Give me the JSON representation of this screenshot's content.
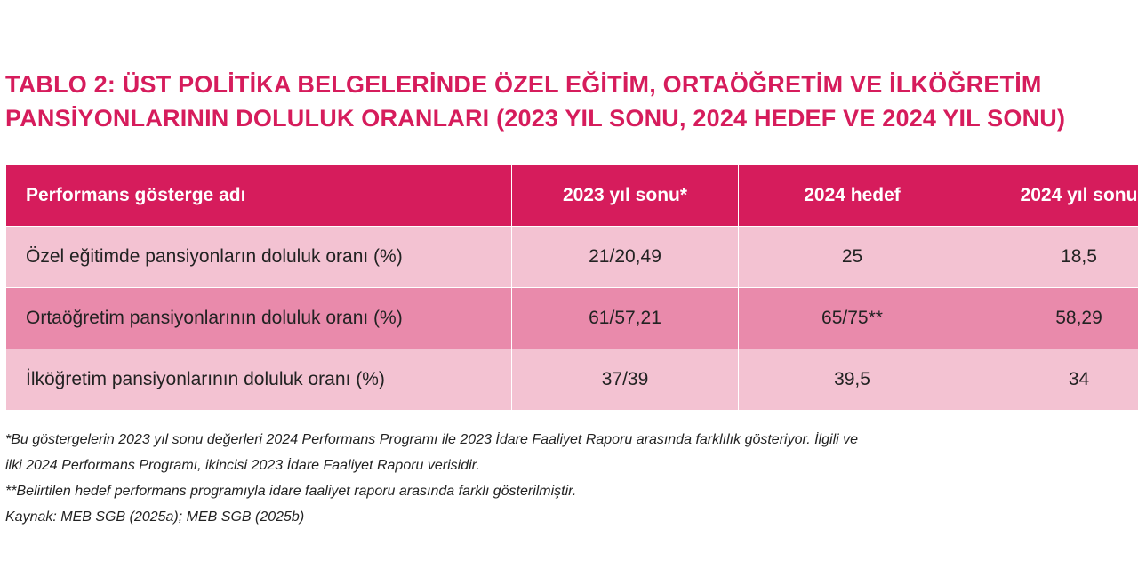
{
  "title": {
    "line1": "TABLO 2: ÜST POLİTİKA BELGELERİNDE ÖZEL EĞİTİM, ORTAÖĞRETİM VE İLKÖĞRETİM",
    "line2": "PANSİYONLARININ DOLULUK ORANLARI (2023 YIL SONU, 2024 HEDEF VE 2024 YIL SONU)"
  },
  "table": {
    "headers": [
      "Performans gösterge adı",
      "2023 yıl sonu*",
      "2024 hedef",
      "2024 yıl sonu"
    ],
    "rows": [
      [
        "Özel eğitimde pansiyonların doluluk oranı (%)",
        "21/20,49",
        "25",
        "18,5"
      ],
      [
        "Ortaöğretim pansiyonlarının doluluk oranı (%)",
        "61/57,21",
        "65/75**",
        "58,29"
      ],
      [
        "İlköğretim pansiyonlarının doluluk oranı (%)",
        "37/39",
        "39,5",
        "34"
      ]
    ]
  },
  "notes": {
    "line1": "*Bu göstergelerin 2023 yıl sonu değerleri 2024 Performans Programı ile 2023 İdare Faaliyet Raporu arasında farklılık gösteriyor. İlgili ve",
    "line2": "ilki 2024 Performans Programı, ikincisi 2023 İdare Faaliyet Raporu verisidir.",
    "line3": "**Belirtilen hedef performans programıyla idare faaliyet raporu arasında farklı gösterilmiştir.",
    "source": "Kaynak: MEB SGB (2025a); MEB SGB (2025b)"
  },
  "colors": {
    "accent": "#d61c5c",
    "row_light": "#f3c2d2",
    "row_dark": "#e98aab"
  }
}
